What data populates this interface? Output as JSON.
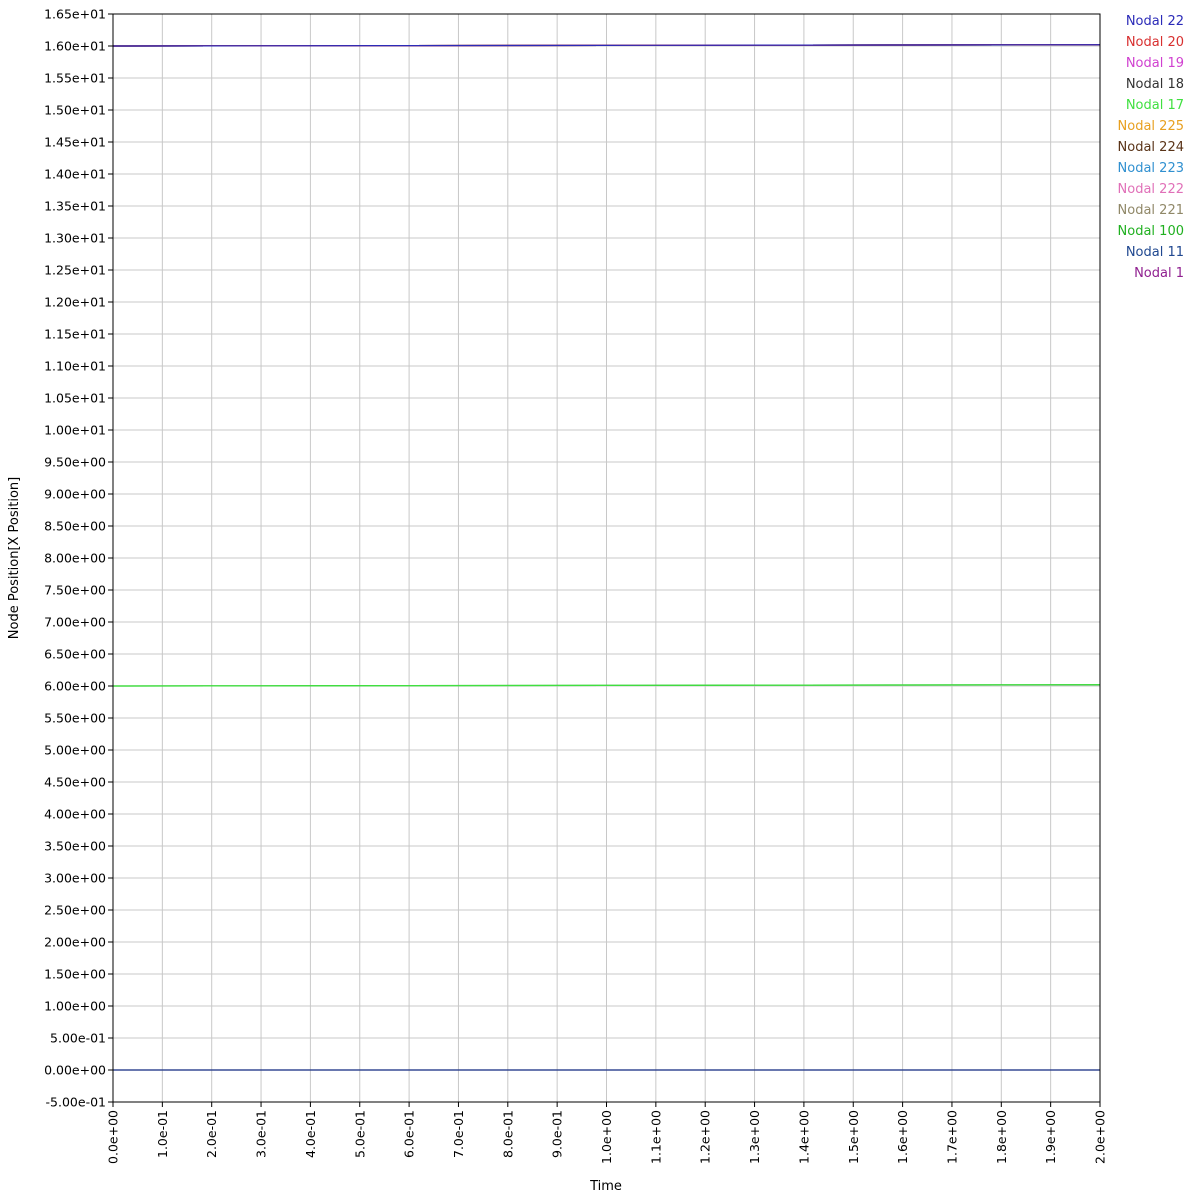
{
  "chart_data": {
    "type": "line",
    "xlabel": "Time",
    "ylabel": "Node Position[X Position]",
    "xlim": [
      0,
      2.0
    ],
    "ylim": [
      -0.5,
      16.5
    ],
    "x_ticks": [
      "0.0e+00",
      "1.0e-01",
      "2.0e-01",
      "3.0e-01",
      "4.0e-01",
      "5.0e-01",
      "6.0e-01",
      "7.0e-01",
      "8.0e-01",
      "9.0e-01",
      "1.0e+00",
      "1.1e+00",
      "1.2e+00",
      "1.3e+00",
      "1.4e+00",
      "1.5e+00",
      "1.6e+00",
      "1.7e+00",
      "1.8e+00",
      "1.9e+00",
      "2.0e+00"
    ],
    "y_ticks": [
      "-5.00e-01",
      "0.00e+00",
      "5.00e-01",
      "1.00e+00",
      "1.50e+00",
      "2.00e+00",
      "2.50e+00",
      "3.00e+00",
      "3.50e+00",
      "4.00e+00",
      "4.50e+00",
      "5.00e+00",
      "5.50e+00",
      "6.00e+00",
      "6.50e+00",
      "7.00e+00",
      "7.50e+00",
      "8.00e+00",
      "8.50e+00",
      "9.00e+00",
      "9.50e+00",
      "1.00e+01",
      "1.05e+01",
      "1.10e+01",
      "1.15e+01",
      "1.20e+01",
      "1.25e+01",
      "1.30e+01",
      "1.35e+01",
      "1.40e+01",
      "1.45e+01",
      "1.50e+01",
      "1.55e+01",
      "1.60e+01",
      "1.65e+01"
    ],
    "grid": true,
    "legend_position": "right",
    "x": [
      0,
      0.2,
      0.4,
      0.6,
      0.8,
      1.0,
      1.2,
      1.4,
      1.6,
      1.8,
      2.0
    ],
    "series": [
      {
        "name": "Nodal 22",
        "color": "#2b2bb8",
        "values": [
          16.0,
          16.002,
          16.004,
          16.006,
          16.008,
          16.01,
          16.012,
          16.014,
          16.016,
          16.018,
          16.02
        ]
      },
      {
        "name": "Nodal 20",
        "color": "#d83030",
        "values": [
          16.0,
          16.002,
          16.004,
          16.006,
          16.008,
          16.01,
          16.012,
          16.014,
          16.016,
          16.018,
          16.02
        ]
      },
      {
        "name": "Nodal 19",
        "color": "#d040d0",
        "values": [
          16.0,
          16.002,
          16.004,
          16.006,
          16.008,
          16.01,
          16.012,
          16.014,
          16.016,
          16.018,
          16.02
        ]
      },
      {
        "name": "Nodal 18",
        "color": "#333333",
        "values": [
          16.0,
          16.002,
          16.004,
          16.006,
          16.008,
          16.01,
          16.012,
          16.014,
          16.016,
          16.018,
          16.02
        ]
      },
      {
        "name": "Nodal 17",
        "color": "#40e040",
        "values": [
          6.0,
          6.002,
          6.004,
          6.006,
          6.008,
          6.01,
          6.012,
          6.014,
          6.016,
          6.018,
          6.02
        ]
      },
      {
        "name": "Nodal 225",
        "color": "#e8a020",
        "values": [
          16.0,
          16.002,
          16.004,
          16.006,
          16.008,
          16.01,
          16.012,
          16.014,
          16.016,
          16.018,
          16.02
        ]
      },
      {
        "name": "Nodal 224",
        "color": "#5a3418",
        "values": [
          16.0,
          16.002,
          16.004,
          16.006,
          16.008,
          16.01,
          16.012,
          16.014,
          16.016,
          16.018,
          16.02
        ]
      },
      {
        "name": "Nodal 223",
        "color": "#3090d0",
        "values": [
          16.0,
          16.002,
          16.004,
          16.006,
          16.008,
          16.01,
          16.012,
          16.014,
          16.016,
          16.018,
          16.02
        ]
      },
      {
        "name": "Nodal 222",
        "color": "#e070b8",
        "values": [
          16.0,
          16.002,
          16.004,
          16.006,
          16.008,
          16.01,
          16.012,
          16.014,
          16.016,
          16.018,
          16.02
        ]
      },
      {
        "name": "Nodal 221",
        "color": "#908868",
        "values": [
          16.0,
          16.002,
          16.004,
          16.006,
          16.008,
          16.01,
          16.012,
          16.014,
          16.016,
          16.018,
          16.02
        ]
      },
      {
        "name": "Nodal 100",
        "color": "#20b020",
        "values": [
          6.0,
          6.002,
          6.004,
          6.006,
          6.008,
          6.01,
          6.012,
          6.014,
          6.016,
          6.018,
          6.02
        ]
      },
      {
        "name": "Nodal 11",
        "color": "#204890",
        "values": [
          0,
          0,
          0,
          0,
          0,
          0,
          0,
          0,
          0,
          0,
          0
        ]
      },
      {
        "name": "Nodal 1",
        "color": "#902090",
        "values": [
          0,
          0,
          0,
          0,
          0,
          0,
          0,
          0,
          0,
          0,
          0
        ]
      }
    ]
  }
}
